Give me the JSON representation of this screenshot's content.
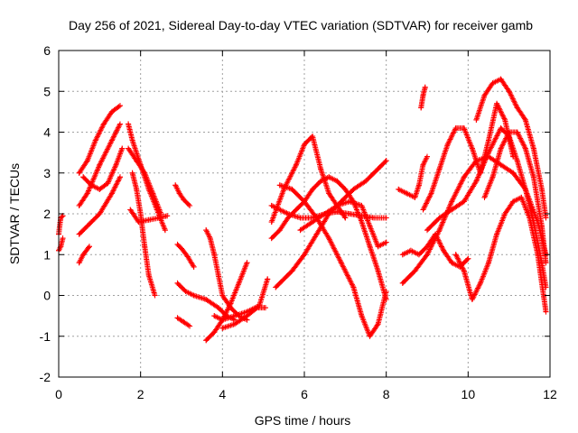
{
  "chart_data": {
    "type": "scatter",
    "title": "Day 256 of 2021, Sidereal Day-to-day VTEC variation (SDTVAR) for receiver gamb",
    "xlabel": "GPS time / hours",
    "ylabel": "SDTVAR / TECUs",
    "xlim": [
      0,
      12
    ],
    "ylim": [
      -2,
      6
    ],
    "xticks": [
      "0",
      "2",
      "4",
      "6",
      "8",
      "10",
      "12"
    ],
    "yticks": [
      "-2",
      "-1",
      "0",
      "1",
      "2",
      "3",
      "4",
      "5",
      "6"
    ],
    "grid": true,
    "marker": "+",
    "color": "#ff0000",
    "series": [
      {
        "name": "s01",
        "x": [
          0.0,
          0.05,
          0.1
        ],
        "y": [
          1.5,
          1.9,
          1.95
        ]
      },
      {
        "name": "s02",
        "x": [
          0.0,
          0.05,
          0.1
        ],
        "y": [
          1.1,
          1.2,
          1.4
        ]
      },
      {
        "name": "s03",
        "x": [
          0.5,
          0.7,
          0.9,
          1.1,
          1.3,
          1.5
        ],
        "y": [
          3.0,
          3.3,
          3.8,
          4.2,
          4.5,
          4.65
        ]
      },
      {
        "name": "s04",
        "x": [
          0.5,
          0.7,
          1.0,
          1.3,
          1.5
        ],
        "y": [
          2.2,
          2.5,
          3.2,
          3.8,
          4.2
        ]
      },
      {
        "name": "s05",
        "x": [
          0.5,
          0.7,
          1.0,
          1.3,
          1.5
        ],
        "y": [
          1.5,
          1.7,
          2.0,
          2.5,
          2.9
        ]
      },
      {
        "name": "s06",
        "x": [
          0.5,
          0.6,
          0.75
        ],
        "y": [
          0.8,
          1.0,
          1.2
        ]
      },
      {
        "name": "s07",
        "x": [
          0.6,
          0.8,
          1.0,
          1.2,
          1.4,
          1.55
        ],
        "y": [
          2.9,
          2.7,
          2.6,
          2.75,
          3.2,
          3.6
        ]
      },
      {
        "name": "s08",
        "x": [
          1.7,
          1.8,
          2.0,
          2.2,
          2.4,
          2.6
        ],
        "y": [
          4.2,
          3.8,
          3.2,
          2.6,
          2.1,
          1.6
        ]
      },
      {
        "name": "s09",
        "x": [
          1.7,
          1.9,
          2.1,
          2.3,
          2.5
        ],
        "y": [
          3.6,
          3.3,
          3.0,
          2.5,
          2.0
        ]
      },
      {
        "name": "s10",
        "x": [
          1.75,
          1.95,
          2.2,
          2.45,
          2.65
        ],
        "y": [
          2.1,
          1.8,
          1.85,
          1.9,
          1.95
        ]
      },
      {
        "name": "s11",
        "x": [
          1.8,
          1.9,
          2.0,
          2.1,
          2.2,
          2.35
        ],
        "y": [
          3.0,
          2.6,
          2.0,
          1.2,
          0.5,
          0.0
        ]
      },
      {
        "name": "s12",
        "x": [
          2.85,
          2.95,
          3.05,
          3.2
        ],
        "y": [
          2.7,
          2.5,
          2.35,
          2.2
        ]
      },
      {
        "name": "s13",
        "x": [
          2.9,
          3.0,
          3.15,
          3.3
        ],
        "y": [
          1.25,
          1.15,
          0.95,
          0.7
        ]
      },
      {
        "name": "s14",
        "x": [
          2.9,
          3.1,
          3.3,
          3.6,
          3.9,
          4.1,
          4.3
        ],
        "y": [
          0.3,
          0.1,
          0.0,
          -0.1,
          -0.3,
          -0.5,
          -0.6
        ]
      },
      {
        "name": "s15",
        "x": [
          2.9,
          3.05,
          3.2
        ],
        "y": [
          -0.55,
          -0.65,
          -0.75
        ]
      },
      {
        "name": "s16",
        "x": [
          3.6,
          3.7,
          3.8,
          3.9,
          4.0,
          4.2,
          4.4,
          4.6
        ],
        "y": [
          1.6,
          1.4,
          1.0,
          0.5,
          0.0,
          -0.3,
          -0.5,
          -0.6
        ]
      },
      {
        "name": "s17",
        "x": [
          3.6,
          3.8,
          4.0,
          4.2,
          4.4,
          4.6
        ],
        "y": [
          -1.1,
          -0.9,
          -0.6,
          -0.2,
          0.3,
          0.8
        ]
      },
      {
        "name": "s18",
        "x": [
          3.8,
          4.0,
          4.3,
          4.6,
          4.9,
          5.1
        ],
        "y": [
          -0.5,
          -0.6,
          -0.5,
          -0.4,
          -0.25,
          0.4
        ]
      },
      {
        "name": "s19",
        "x": [
          4.0,
          4.3,
          4.6,
          4.85,
          5.05
        ],
        "y": [
          -0.8,
          -0.7,
          -0.5,
          -0.3,
          -0.3
        ]
      },
      {
        "name": "s20",
        "x": [
          5.2,
          5.5,
          5.8,
          6.0,
          6.2,
          6.4,
          6.6,
          6.8,
          7.0
        ],
        "y": [
          1.8,
          2.6,
          3.2,
          3.7,
          3.9,
          3.1,
          2.5,
          2.2,
          1.9
        ]
      },
      {
        "name": "s21",
        "x": [
          5.2,
          5.4,
          5.6,
          5.8,
          6.0,
          6.2,
          6.4,
          6.6,
          6.8,
          7.0,
          7.2,
          7.4,
          7.6,
          7.8,
          8.0
        ],
        "y": [
          1.4,
          1.6,
          1.9,
          2.1,
          2.3,
          2.6,
          2.8,
          2.9,
          2.8,
          2.6,
          2.3,
          1.8,
          1.2,
          0.6,
          -0.1
        ]
      },
      {
        "name": "s22",
        "x": [
          5.3,
          5.7,
          6.0,
          6.3,
          6.6,
          6.9,
          7.2,
          7.5,
          7.8,
          8.0
        ],
        "y": [
          0.2,
          0.6,
          1.0,
          1.5,
          2.0,
          2.3,
          2.6,
          2.8,
          3.1,
          3.3
        ]
      },
      {
        "name": "s23",
        "x": [
          5.2,
          5.6,
          5.9,
          6.2,
          6.5,
          6.8,
          7.1,
          7.4,
          7.7,
          8.0
        ],
        "y": [
          2.2,
          2.0,
          1.9,
          1.9,
          2.0,
          2.05,
          2.0,
          1.95,
          1.9,
          1.9
        ]
      },
      {
        "name": "s24",
        "x": [
          5.4,
          5.7,
          6.0,
          6.3,
          6.6,
          6.9,
          7.2,
          7.4,
          7.6,
          7.8,
          8.0
        ],
        "y": [
          2.7,
          2.6,
          2.3,
          1.9,
          1.4,
          0.8,
          0.2,
          -0.5,
          -1.0,
          -0.7,
          0.1
        ]
      },
      {
        "name": "s25",
        "x": [
          5.9,
          6.2,
          6.5,
          6.8,
          7.1,
          7.4,
          7.6,
          7.8,
          8.0
        ],
        "y": [
          1.6,
          1.8,
          2.0,
          2.2,
          2.3,
          2.2,
          1.7,
          1.2,
          1.3
        ]
      },
      {
        "name": "s26",
        "x": [
          8.3,
          8.5,
          8.7,
          8.8,
          8.9,
          9.0
        ],
        "y": [
          2.6,
          2.5,
          2.4,
          2.7,
          3.2,
          3.4
        ]
      },
      {
        "name": "s27",
        "x": [
          8.85,
          8.9,
          8.95
        ],
        "y": [
          4.6,
          4.9,
          5.1
        ]
      },
      {
        "name": "s28",
        "x": [
          8.4,
          8.6,
          8.8,
          9.0,
          9.2,
          9.4,
          9.6,
          9.8,
          10.0
        ],
        "y": [
          1.0,
          1.1,
          1.0,
          1.2,
          1.5,
          1.1,
          0.8,
          0.7,
          0.9
        ]
      },
      {
        "name": "s29",
        "x": [
          8.4,
          8.7,
          9.0,
          9.3,
          9.6,
          9.9,
          10.2,
          10.5,
          10.8,
          11.1,
          11.4,
          11.7,
          11.9
        ],
        "y": [
          0.3,
          0.6,
          1.0,
          1.6,
          2.3,
          2.9,
          3.3,
          3.4,
          3.2,
          3.0,
          2.6,
          1.8,
          1.0
        ]
      },
      {
        "name": "s30",
        "x": [
          8.9,
          9.1,
          9.3,
          9.5,
          9.7,
          9.9,
          10.1,
          10.3,
          10.5,
          10.7,
          10.9,
          11.1
        ],
        "y": [
          2.1,
          2.5,
          3.1,
          3.7,
          4.1,
          4.1,
          3.6,
          3.0,
          3.8,
          4.7,
          4.3,
          3.4
        ]
      },
      {
        "name": "s31",
        "x": [
          9.0,
          9.3,
          9.6,
          9.9,
          10.2,
          10.5,
          10.8,
          11.0,
          11.2,
          11.4,
          11.6,
          11.8,
          11.9
        ],
        "y": [
          1.6,
          1.9,
          2.1,
          2.3,
          2.8,
          3.5,
          4.1,
          3.9,
          3.3,
          2.6,
          1.8,
          0.8,
          0.2
        ]
      },
      {
        "name": "s32",
        "x": [
          10.2,
          10.4,
          10.6,
          10.8,
          11.0,
          11.2,
          11.4,
          11.6,
          11.8,
          11.9
        ],
        "y": [
          4.3,
          4.9,
          5.2,
          5.3,
          5.0,
          4.6,
          4.3,
          3.6,
          2.6,
          1.9
        ]
      },
      {
        "name": "s33",
        "x": [
          9.7,
          9.9,
          10.1,
          10.3,
          10.5,
          10.7,
          10.9,
          11.1,
          11.3,
          11.5,
          11.7,
          11.9
        ],
        "y": [
          1.0,
          0.6,
          -0.1,
          0.3,
          0.8,
          1.5,
          2.0,
          2.3,
          2.4,
          1.9,
          1.0,
          -0.4
        ]
      },
      {
        "name": "s34",
        "x": [
          10.4,
          10.6,
          10.8,
          11.0,
          11.2,
          11.4,
          11.6,
          11.8,
          11.9
        ],
        "y": [
          2.4,
          2.9,
          3.6,
          4.0,
          4.0,
          3.6,
          2.9,
          1.7,
          0.8
        ]
      }
    ]
  }
}
